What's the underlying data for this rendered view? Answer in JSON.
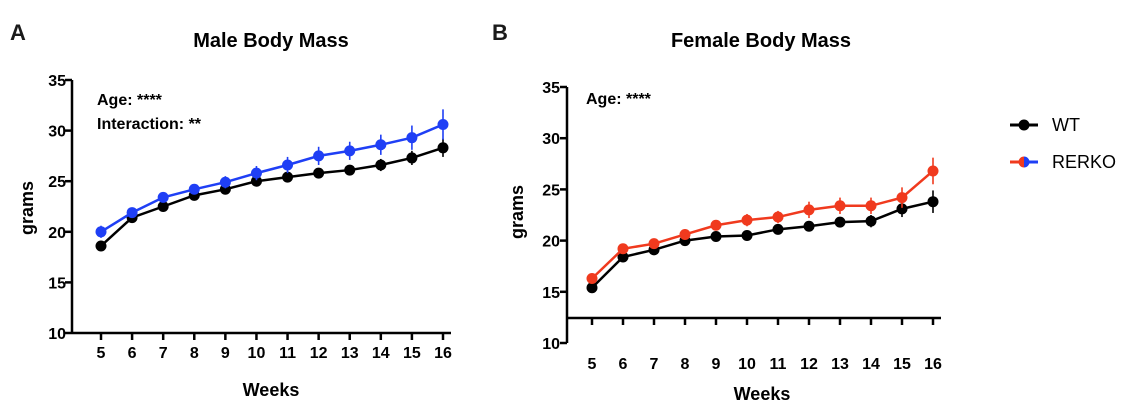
{
  "chart_data": [
    {
      "type": "line",
      "panel_label": "A",
      "title": "Male Body Mass",
      "xlabel": "Weeks",
      "ylabel": "grams",
      "categories": [
        "5",
        "6",
        "7",
        "8",
        "9",
        "10",
        "11",
        "12",
        "13",
        "14",
        "15",
        "16"
      ],
      "ylim": [
        10,
        35
      ],
      "yticks": [
        "10",
        "15",
        "20",
        "25",
        "30",
        "35"
      ],
      "annotations": [
        "Age: ****",
        "Interaction: **"
      ],
      "grid": false,
      "series": [
        {
          "name": "WT",
          "color": "#000000",
          "values": [
            18.6,
            21.4,
            22.5,
            23.6,
            24.2,
            25.0,
            25.4,
            25.8,
            26.1,
            26.6,
            27.3,
            28.3
          ],
          "error": [
            0.4,
            0.4,
            0.4,
            0.4,
            0.4,
            0.4,
            0.4,
            0.5,
            0.5,
            0.6,
            0.7,
            0.9
          ]
        },
        {
          "name": "RERKO",
          "color": "#1f3ff5",
          "values": [
            20.0,
            21.9,
            23.4,
            24.2,
            24.9,
            25.8,
            26.6,
            27.5,
            28.0,
            28.6,
            29.3,
            30.6
          ],
          "error": [
            0.6,
            0.5,
            0.5,
            0.5,
            0.6,
            0.7,
            0.8,
            0.9,
            0.9,
            1.0,
            1.2,
            1.5
          ]
        }
      ]
    },
    {
      "type": "line",
      "panel_label": "B",
      "title": "Female Body Mass",
      "xlabel": "Weeks",
      "ylabel": "grams",
      "categories": [
        "5",
        "6",
        "7",
        "8",
        "9",
        "10",
        "11",
        "12",
        "13",
        "14",
        "15",
        "16"
      ],
      "ylim": [
        10,
        35
      ],
      "yticks": [
        "10",
        "15",
        "20",
        "25",
        "30",
        "35"
      ],
      "annotations": [
        "Age: ****"
      ],
      "grid": false,
      "series": [
        {
          "name": "WT",
          "color": "#000000",
          "values": [
            15.4,
            18.4,
            19.1,
            20.0,
            20.4,
            20.5,
            21.1,
            21.4,
            21.8,
            21.9,
            23.1,
            23.8
          ],
          "error": [
            0.3,
            0.4,
            0.4,
            0.4,
            0.4,
            0.4,
            0.4,
            0.5,
            0.5,
            0.6,
            0.8,
            1.1
          ]
        },
        {
          "name": "RERKO",
          "color": "#f03a1e",
          "values": [
            16.3,
            19.2,
            19.7,
            20.6,
            21.5,
            22.0,
            22.3,
            23.0,
            23.4,
            23.4,
            24.2,
            26.8
          ],
          "error": [
            0.4,
            0.4,
            0.4,
            0.5,
            0.5,
            0.6,
            0.6,
            0.8,
            0.8,
            0.8,
            1.0,
            1.3
          ]
        }
      ]
    }
  ],
  "legend": {
    "placement": "right",
    "items": [
      {
        "label": "WT",
        "color": "#000000"
      },
      {
        "label": "RERKO",
        "color": "#f03a1e",
        "color2": "#1f3ff5"
      }
    ]
  }
}
